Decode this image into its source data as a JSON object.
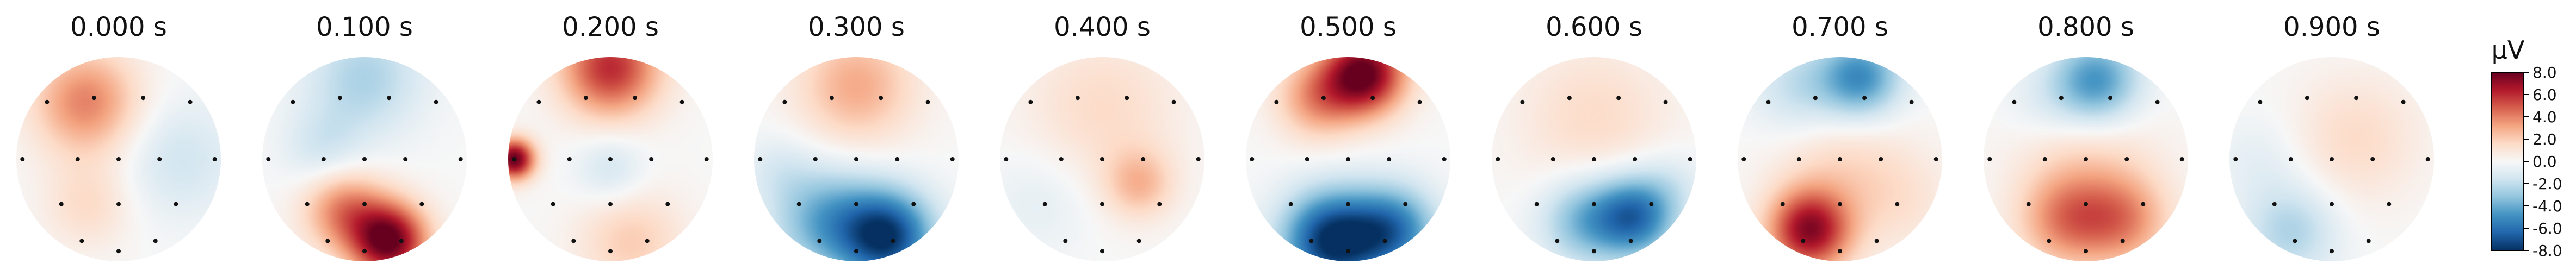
{
  "chart_data": {
    "type": "heatmap",
    "colormap": "RdBu_r",
    "colorbar": {
      "unit": "µV",
      "range": [
        -8.0,
        8.0
      ],
      "ticks": [
        "8.0",
        "6.0",
        "4.0",
        "2.0",
        "0.0",
        "-2.0",
        "-4.0",
        "-6.0",
        "-8.0"
      ]
    },
    "panels": [
      {
        "title": "0.000 s",
        "sources": [
          [
            0.34,
            0.22,
            4.0,
            0.18
          ],
          [
            0.35,
            0.72,
            1.5,
            0.15
          ],
          [
            0.8,
            0.5,
            -1.5,
            0.2
          ]
        ]
      },
      {
        "title": "0.100 s",
        "sources": [
          [
            0.62,
            0.9,
            8.0,
            0.13
          ],
          [
            0.4,
            0.75,
            4.0,
            0.14
          ],
          [
            0.5,
            0.1,
            -2.5,
            0.2
          ],
          [
            0.3,
            0.45,
            -1.5,
            0.14
          ]
        ]
      },
      {
        "title": "0.200 s",
        "sources": [
          [
            0.5,
            0.05,
            6.0,
            0.17
          ],
          [
            0.03,
            0.5,
            8.0,
            0.07
          ],
          [
            0.5,
            0.55,
            -1.5,
            0.12
          ],
          [
            0.6,
            0.9,
            2.0,
            0.18
          ]
        ]
      },
      {
        "title": "0.300 s",
        "sources": [
          [
            0.5,
            0.14,
            3.0,
            0.2
          ],
          [
            0.65,
            0.88,
            -7.5,
            0.16
          ],
          [
            0.35,
            0.8,
            -4.0,
            0.18
          ],
          [
            0.12,
            0.55,
            -1.0,
            0.12
          ]
        ]
      },
      {
        "title": "0.400 s",
        "sources": [
          [
            0.5,
            0.25,
            1.5,
            0.26
          ],
          [
            0.68,
            0.62,
            2.5,
            0.12
          ],
          [
            0.2,
            0.7,
            -0.8,
            0.18
          ]
        ]
      },
      {
        "title": "0.500 s",
        "sources": [
          [
            0.58,
            0.08,
            8.0,
            0.14
          ],
          [
            0.35,
            0.2,
            3.5,
            0.14
          ],
          [
            0.42,
            0.9,
            -8.0,
            0.17
          ],
          [
            0.72,
            0.85,
            -5.5,
            0.15
          ]
        ]
      },
      {
        "title": "0.600 s",
        "sources": [
          [
            0.5,
            0.3,
            1.5,
            0.26
          ],
          [
            0.7,
            0.78,
            -6.0,
            0.14
          ],
          [
            0.45,
            0.8,
            -3.5,
            0.15
          ],
          [
            0.88,
            0.62,
            -1.0,
            0.12
          ]
        ]
      },
      {
        "title": "0.700 s",
        "sources": [
          [
            0.6,
            0.1,
            -5.0,
            0.14
          ],
          [
            0.3,
            0.15,
            -2.0,
            0.16
          ],
          [
            0.35,
            0.85,
            7.0,
            0.14
          ],
          [
            0.5,
            0.55,
            1.5,
            0.22
          ],
          [
            0.8,
            0.7,
            1.0,
            0.18
          ]
        ]
      },
      {
        "title": "0.800 s",
        "sources": [
          [
            0.55,
            0.12,
            -5.0,
            0.15
          ],
          [
            0.3,
            0.22,
            -1.0,
            0.14
          ],
          [
            0.4,
            0.8,
            3.5,
            0.16
          ],
          [
            0.68,
            0.8,
            3.5,
            0.16
          ],
          [
            0.5,
            0.5,
            1.5,
            0.24
          ]
        ]
      },
      {
        "title": "0.900 s",
        "sources": [
          [
            0.62,
            0.4,
            1.5,
            0.22
          ],
          [
            0.3,
            0.85,
            -2.5,
            0.16
          ],
          [
            0.15,
            0.5,
            -0.8,
            0.15
          ]
        ]
      }
    ]
  }
}
